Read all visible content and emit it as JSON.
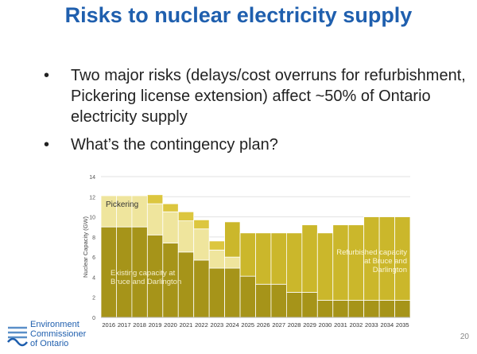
{
  "slide": {
    "title": "Risks to nuclear electricity supply",
    "bullets": [
      "Two major risks (delays/cost overruns for refurbishment, Pickering license extension) affect ~50% of Ontario electricity supply",
      "What’s the contingency plan?"
    ],
    "page_number": "20",
    "logo_lines": [
      "Environment",
      "Commissioner",
      "of Ontario"
    ]
  },
  "chart_data": {
    "type": "bar",
    "stacked": true,
    "ylabel": "Nuclear Capacity (GW)",
    "xlabel": "",
    "ylim": [
      0,
      14
    ],
    "yticks": [
      0,
      2,
      4,
      6,
      8,
      10,
      12,
      14
    ],
    "grid": true,
    "categories": [
      "2016",
      "2017",
      "2018",
      "2019",
      "2020",
      "2021",
      "2022",
      "2023",
      "2024",
      "2025",
      "2026",
      "2027",
      "2028",
      "2029",
      "2030",
      "2031",
      "2032",
      "2033",
      "2034",
      "2035"
    ],
    "series": [
      {
        "name": "Existing capacity at Bruce and Darlington",
        "color": "#a69419",
        "values": [
          9.0,
          9.0,
          9.0,
          8.2,
          7.4,
          6.5,
          5.7,
          4.9,
          4.9,
          4.1,
          3.3,
          3.3,
          2.5,
          2.5,
          1.7,
          1.7,
          1.7,
          1.7,
          1.7,
          1.7
        ]
      },
      {
        "name": "Pickering (light)",
        "color": "#efe59d",
        "values": [
          3.1,
          3.1,
          3.1,
          3.1,
          3.1,
          3.1,
          3.1,
          1.8,
          1.1,
          0,
          0,
          0,
          0,
          0,
          0,
          0,
          0,
          0,
          0,
          0
        ]
      },
      {
        "name": "Pickering (mid)",
        "color": "#dcc63f",
        "values": [
          0,
          0,
          0,
          0.9,
          0.8,
          0.9,
          0.9,
          0.9,
          0,
          0,
          0,
          0,
          0,
          0,
          0,
          0,
          0,
          0,
          0,
          0
        ]
      },
      {
        "name": "Refurbished capacity at Bruce and Darlington",
        "color": "#cbb72b",
        "values": [
          0,
          0,
          0,
          0,
          0,
          0,
          0,
          0,
          3.5,
          4.3,
          5.1,
          5.1,
          5.9,
          6.7,
          6.7,
          7.5,
          7.5,
          8.3,
          8.3,
          8.3
        ]
      }
    ],
    "annotations": {
      "pickering": "Pickering",
      "existing": [
        "Existing capacity at",
        "Bruce and Darlington"
      ],
      "refurbished": [
        "Refurbished capacity",
        "at Bruce and",
        "Darlington"
      ]
    }
  }
}
